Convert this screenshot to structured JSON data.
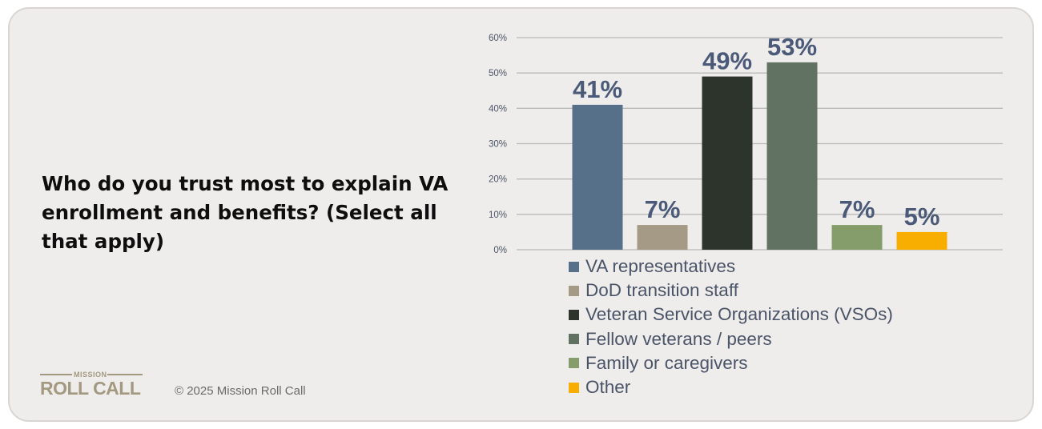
{
  "question": "Who do you trust most to explain VA enrollment and benefits? (Select all that apply)",
  "logo": {
    "top_word": "MISSION",
    "main_word": "ROLL CALL"
  },
  "copyright": "© 2025 Mission Roll Call",
  "chart_data": {
    "type": "bar",
    "categories": [
      "VA representatives",
      "DoD transition staff",
      "Veteran Service Organizations (VSOs)",
      "Fellow veterans / peers",
      "Family or caregivers",
      "Other"
    ],
    "values": [
      41,
      7,
      49,
      53,
      7,
      5
    ],
    "value_labels": [
      "41%",
      "7%",
      "49%",
      "53%",
      "7%",
      "5%"
    ],
    "colors": [
      "#57708a",
      "#a59a85",
      "#2c342c",
      "#617262",
      "#849d6a",
      "#f8ae00"
    ],
    "ylim": [
      0,
      60
    ],
    "yticks": [
      0,
      10,
      20,
      30,
      40,
      50,
      60
    ],
    "ytick_labels": [
      "0%",
      "10%",
      "20%",
      "30%",
      "40%",
      "50%",
      "60%"
    ],
    "grid": true,
    "legend_position": "bottom",
    "title": "",
    "xlabel": "",
    "ylabel": ""
  }
}
